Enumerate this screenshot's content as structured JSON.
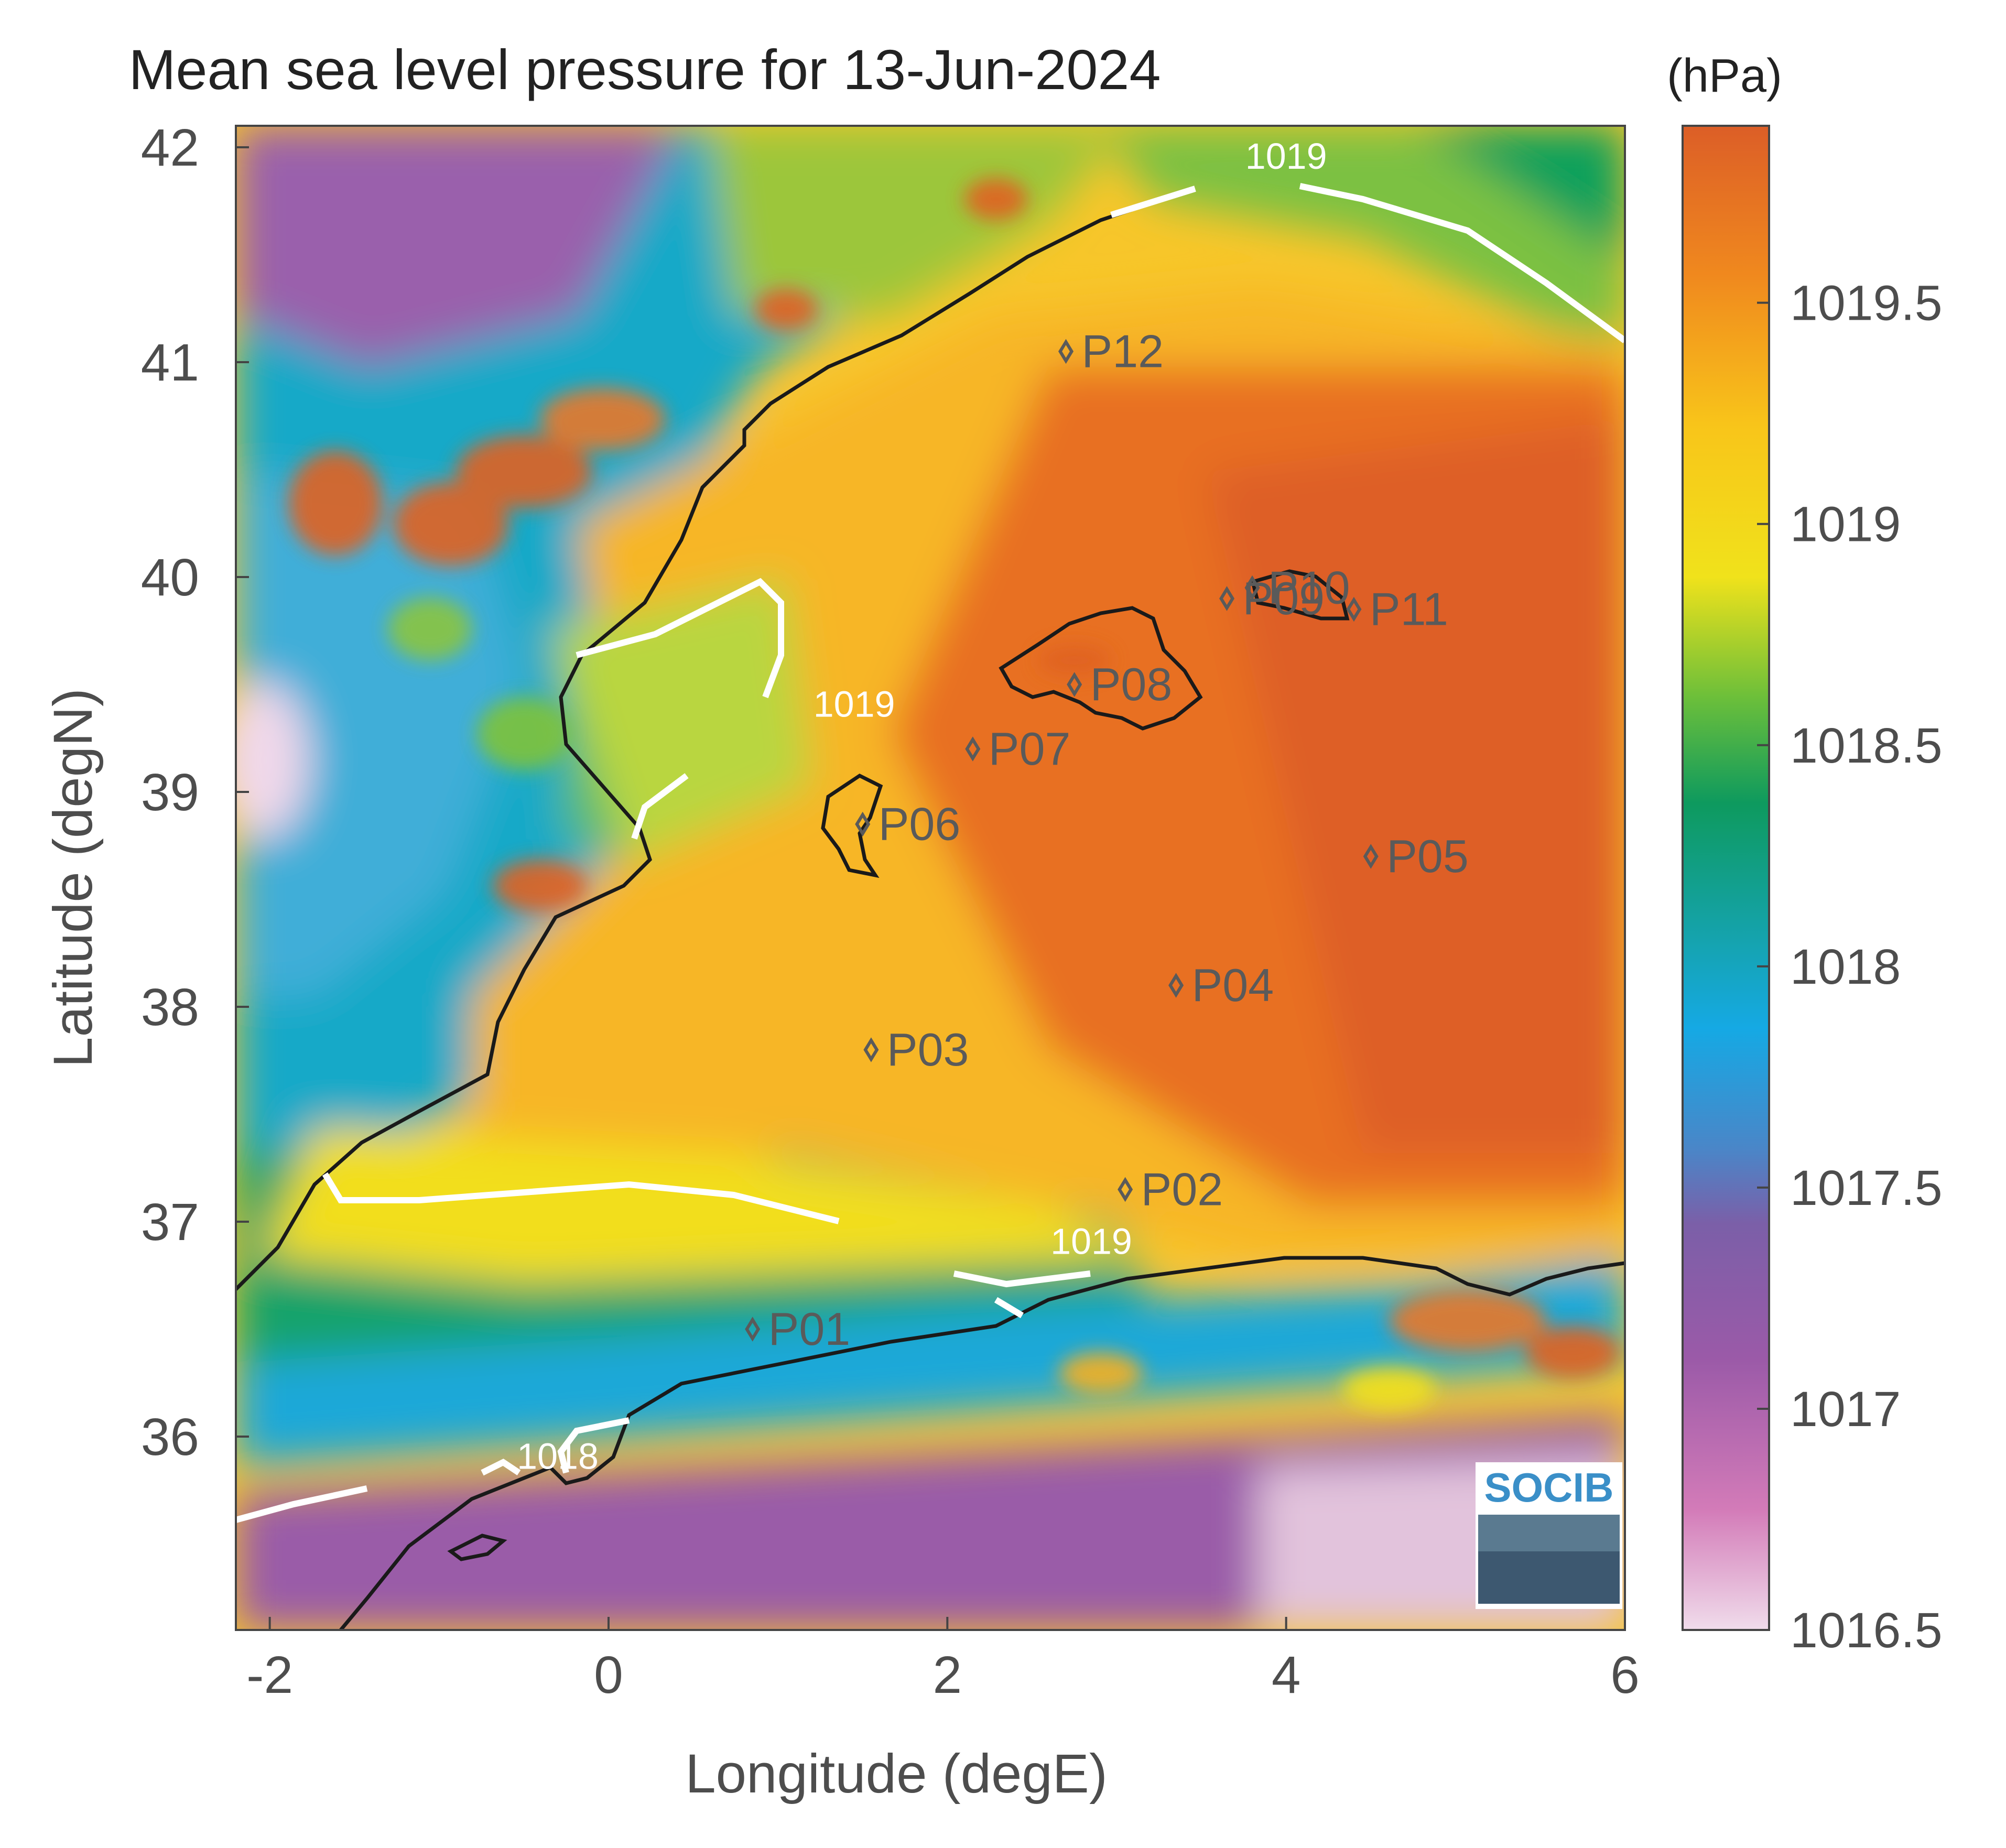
{
  "title": "Mean sea level pressure for 13-Jun-2024",
  "map": {
    "xlabel": "Longitude (degE)",
    "ylabel": "Latitude (degN)",
    "xlim": [
      -2.2,
      6.0
    ],
    "ylim": [
      35.1,
      42.1
    ],
    "xticks": [
      -2,
      0,
      2,
      4,
      6
    ],
    "yticks": [
      36,
      37,
      38,
      39,
      40,
      41,
      42
    ],
    "points": [
      {
        "label": "P01",
        "lon": 0.85,
        "lat": 36.5
      },
      {
        "label": "P02",
        "lon": 3.05,
        "lat": 37.15
      },
      {
        "label": "P03",
        "lon": 1.55,
        "lat": 37.8
      },
      {
        "label": "P04",
        "lon": 3.35,
        "lat": 38.1
      },
      {
        "label": "P05",
        "lon": 4.5,
        "lat": 38.7
      },
      {
        "label": "P06",
        "lon": 1.5,
        "lat": 38.85
      },
      {
        "label": "P07",
        "lon": 2.15,
        "lat": 39.2
      },
      {
        "label": "P08",
        "lon": 2.75,
        "lat": 39.5
      },
      {
        "label": "P09",
        "lon": 3.65,
        "lat": 39.9
      },
      {
        "label": "P10",
        "lon": 3.8,
        "lat": 39.95
      },
      {
        "label": "P11",
        "lon": 4.4,
        "lat": 39.85
      },
      {
        "label": "P12",
        "lon": 2.7,
        "lat": 41.05
      }
    ],
    "contour_labels": [
      {
        "text": "1019",
        "lon": 4.0,
        "lat": 41.9
      },
      {
        "text": "1019",
        "lon": 1.45,
        "lat": 39.35
      },
      {
        "text": "1019",
        "lon": 2.85,
        "lat": 36.85
      },
      {
        "text": "1018",
        "lon": -0.3,
        "lat": 35.85
      }
    ],
    "logo_text": "SOCIB"
  },
  "colorbar": {
    "unit": "(hPa)",
    "min": 1016.5,
    "max": 1019.9,
    "ticks": [
      "1016.5",
      "1017",
      "1017.5",
      "1018",
      "1018.5",
      "1019",
      "1019.5"
    ],
    "tick_values": [
      1016.5,
      1017,
      1017.5,
      1018,
      1018.5,
      1019,
      1019.5
    ]
  },
  "colors": {
    "high": "#e06224",
    "mid_high": "#f5a623",
    "mid": "#f2e01a",
    "green": "#0f9b5e",
    "teal": "#17a3b0",
    "blue": "#15a7e2",
    "purple": "#8e5ba8",
    "low": "#e7c8de"
  }
}
